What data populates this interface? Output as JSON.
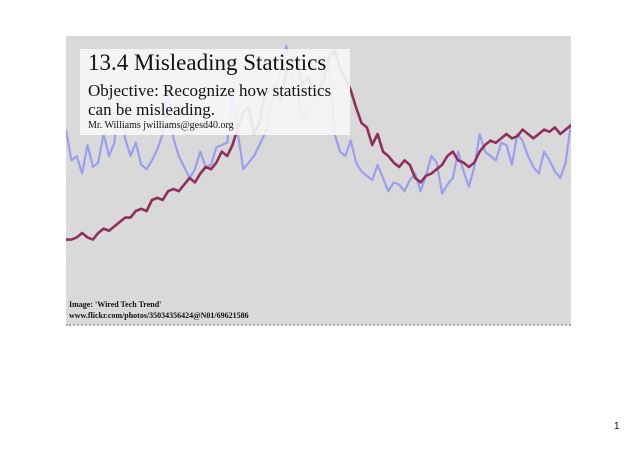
{
  "slide": {
    "title": "13.4 Misleading Statistics",
    "objective": "Objective: Recognize how statistics can be misleading.",
    "author": "Mr. Williams   jwilliams@gesd40.org",
    "image_credit_line1": "Image: 'Wired Tech Trend'",
    "image_credit_line2": "www.flickr.com/photos/35034356424@N01/69621586",
    "page_number": "1"
  },
  "colors": {
    "background": "#d9d9d9",
    "trend_line": "#8e2f5c",
    "spike_line": "#9a9ff0",
    "title_box": "#f5f5f5"
  },
  "chart_data": {
    "type": "line",
    "title": "",
    "xlabel": "",
    "ylabel": "",
    "grid": false,
    "series": [
      {
        "values": [
          12,
          12,
          13,
          15,
          13,
          12,
          15,
          17,
          16,
          18,
          20,
          22,
          22,
          25,
          26,
          25,
          30,
          31,
          30,
          34,
          35,
          34,
          37,
          40,
          38,
          42,
          45,
          44,
          47,
          52,
          50,
          55,
          63,
          70,
          72,
          60,
          65,
          78,
          80,
          82,
          75,
          88,
          92,
          94,
          82,
          86,
          80,
          79,
          85,
          95,
          98,
          90,
          85,
          80,
          72,
          65,
          63,
          55,
          60,
          52,
          50,
          47,
          45,
          48,
          46,
          40,
          38,
          41,
          42,
          44,
          46,
          50,
          52,
          48,
          47,
          45,
          47,
          52,
          55,
          57,
          56,
          58,
          60,
          58,
          59,
          62,
          60,
          58,
          60,
          62,
          61,
          63,
          60,
          62,
          64
        ]
      },
      {
        "values": [
          62,
          48,
          50,
          42,
          55,
          45,
          47,
          60,
          50,
          56,
          82,
          58,
          50,
          56,
          46,
          44,
          48,
          53,
          60,
          82,
          58,
          50,
          45,
          40,
          44,
          52,
          45,
          46,
          54,
          55,
          56,
          80,
          60,
          44,
          47,
          50,
          55,
          60,
          72,
          80,
          90,
          100,
          86,
          82,
          65,
          70,
          74,
          80,
          95,
          90,
          60,
          52,
          50,
          57,
          47,
          43,
          41,
          39,
          46,
          40,
          34,
          38,
          37,
          34,
          39,
          42,
          34,
          41,
          50,
          47,
          33,
          37,
          40,
          52,
          43,
          36,
          45,
          60,
          52,
          50,
          48,
          56,
          55,
          46,
          60,
          57,
          50,
          45,
          42,
          52,
          48,
          43,
          40,
          47,
          65
        ]
      }
    ]
  }
}
